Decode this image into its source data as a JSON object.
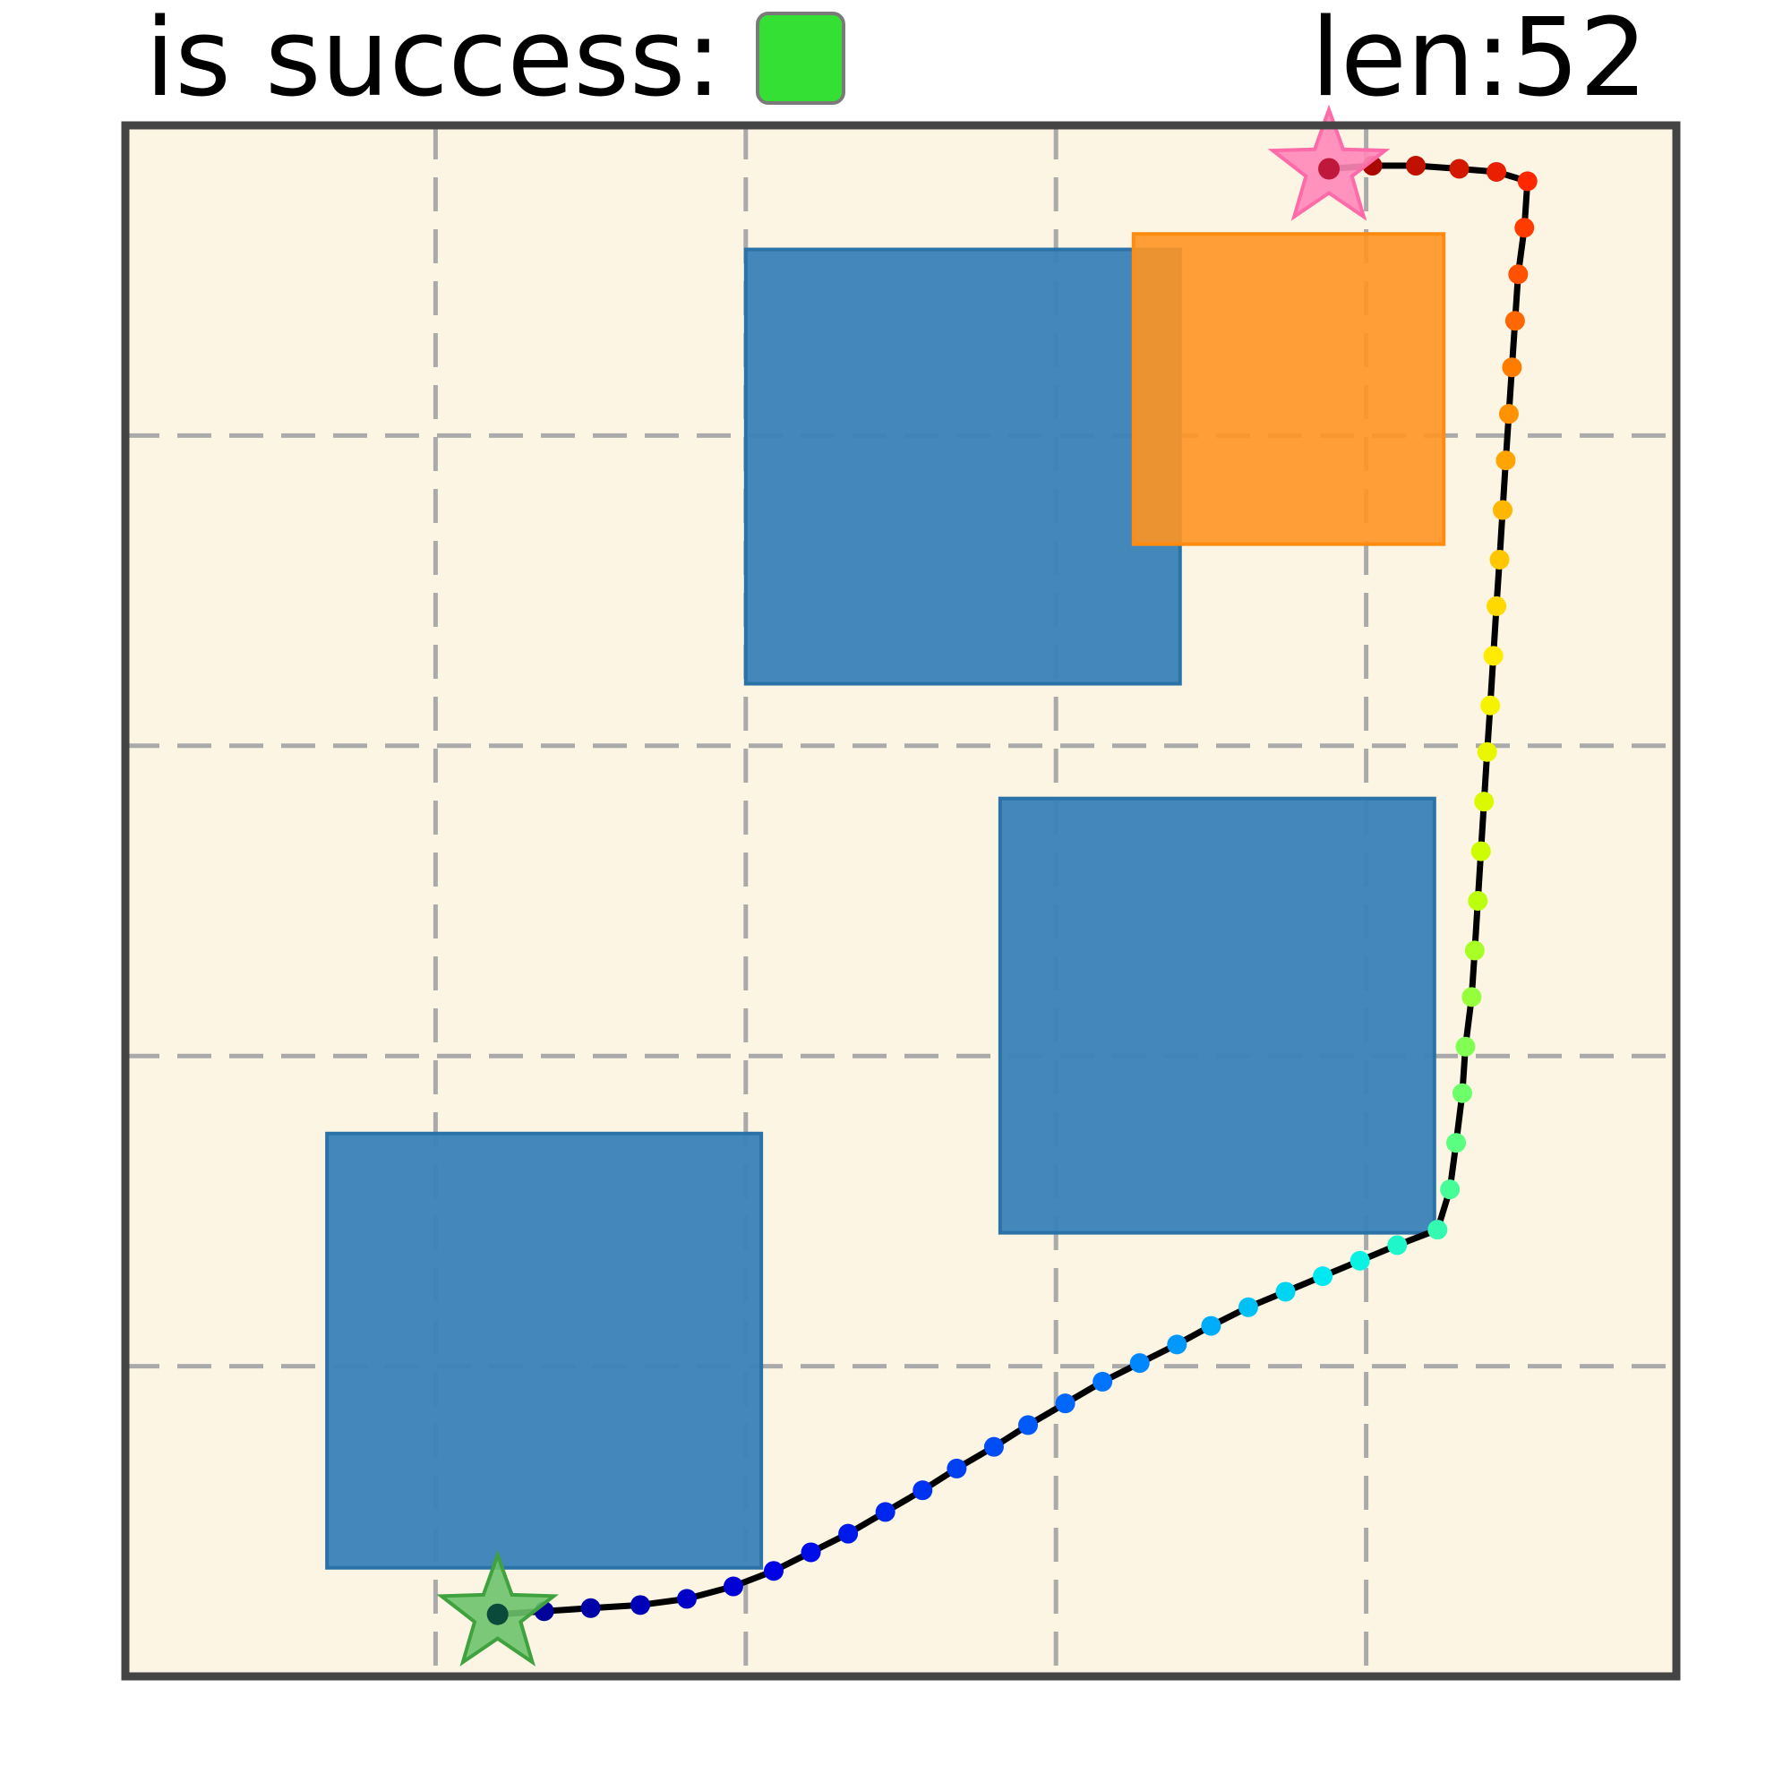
{
  "header": {
    "success_label": "is success:",
    "success_color": "#35e035",
    "length_label": "len:52"
  },
  "colors": {
    "background": "#fcf5e3",
    "frame": "#444444",
    "grid": "#aaaaaa",
    "obstacle": "#3a82b8",
    "goal_region": "#ff9522",
    "path_line": "#000000",
    "start_star": "#6cc36c",
    "end_star": "#ff88b8"
  },
  "chart_data": {
    "type": "scatter",
    "xlim": [
      0,
      5
    ],
    "ylim": [
      0,
      5
    ],
    "grid": true,
    "obstacles": [
      {
        "name": "obstacle-top",
        "x": 2.0,
        "y": 3.2,
        "w": 1.4,
        "h": 1.4
      },
      {
        "name": "obstacle-right",
        "x": 2.82,
        "y": 1.43,
        "w": 1.4,
        "h": 1.4
      },
      {
        "name": "obstacle-bottom-left",
        "x": 0.65,
        "y": 0.35,
        "w": 1.4,
        "h": 1.4
      }
    ],
    "goal_region": {
      "x": 3.25,
      "y": 3.65,
      "w": 1.0,
      "h": 1.0
    },
    "start": [
      1.2,
      0.2
    ],
    "end": [
      3.88,
      4.86
    ],
    "trajectory": [
      [
        1.2,
        0.2
      ],
      [
        1.35,
        0.21
      ],
      [
        1.5,
        0.22
      ],
      [
        1.66,
        0.23
      ],
      [
        1.81,
        0.25
      ],
      [
        1.96,
        0.29
      ],
      [
        2.09,
        0.34
      ],
      [
        2.21,
        0.4
      ],
      [
        2.33,
        0.46
      ],
      [
        2.45,
        0.53
      ],
      [
        2.57,
        0.6
      ],
      [
        2.68,
        0.67
      ],
      [
        2.8,
        0.74
      ],
      [
        2.91,
        0.81
      ],
      [
        3.03,
        0.88
      ],
      [
        3.15,
        0.95
      ],
      [
        3.27,
        1.01
      ],
      [
        3.39,
        1.07
      ],
      [
        3.5,
        1.13
      ],
      [
        3.62,
        1.19
      ],
      [
        3.74,
        1.24
      ],
      [
        3.86,
        1.29
      ],
      [
        3.98,
        1.34
      ],
      [
        4.1,
        1.39
      ],
      [
        4.23,
        1.44
      ],
      [
        4.27,
        1.57
      ],
      [
        4.29,
        1.72
      ],
      [
        4.31,
        1.88
      ],
      [
        4.32,
        2.03
      ],
      [
        4.34,
        2.19
      ],
      [
        4.35,
        2.34
      ],
      [
        4.36,
        2.5
      ],
      [
        4.37,
        2.66
      ],
      [
        4.38,
        2.82
      ],
      [
        4.39,
        2.98
      ],
      [
        4.4,
        3.13
      ],
      [
        4.41,
        3.29
      ],
      [
        4.42,
        3.45
      ],
      [
        4.43,
        3.6
      ],
      [
        4.44,
        3.76
      ],
      [
        4.45,
        3.92
      ],
      [
        4.46,
        4.07
      ],
      [
        4.47,
        4.22
      ],
      [
        4.48,
        4.37
      ],
      [
        4.49,
        4.52
      ],
      [
        4.51,
        4.67
      ],
      [
        4.52,
        4.82
      ],
      [
        4.42,
        4.85
      ],
      [
        4.3,
        4.86
      ],
      [
        4.16,
        4.87
      ],
      [
        4.02,
        4.87
      ],
      [
        3.88,
        4.86
      ]
    ]
  }
}
